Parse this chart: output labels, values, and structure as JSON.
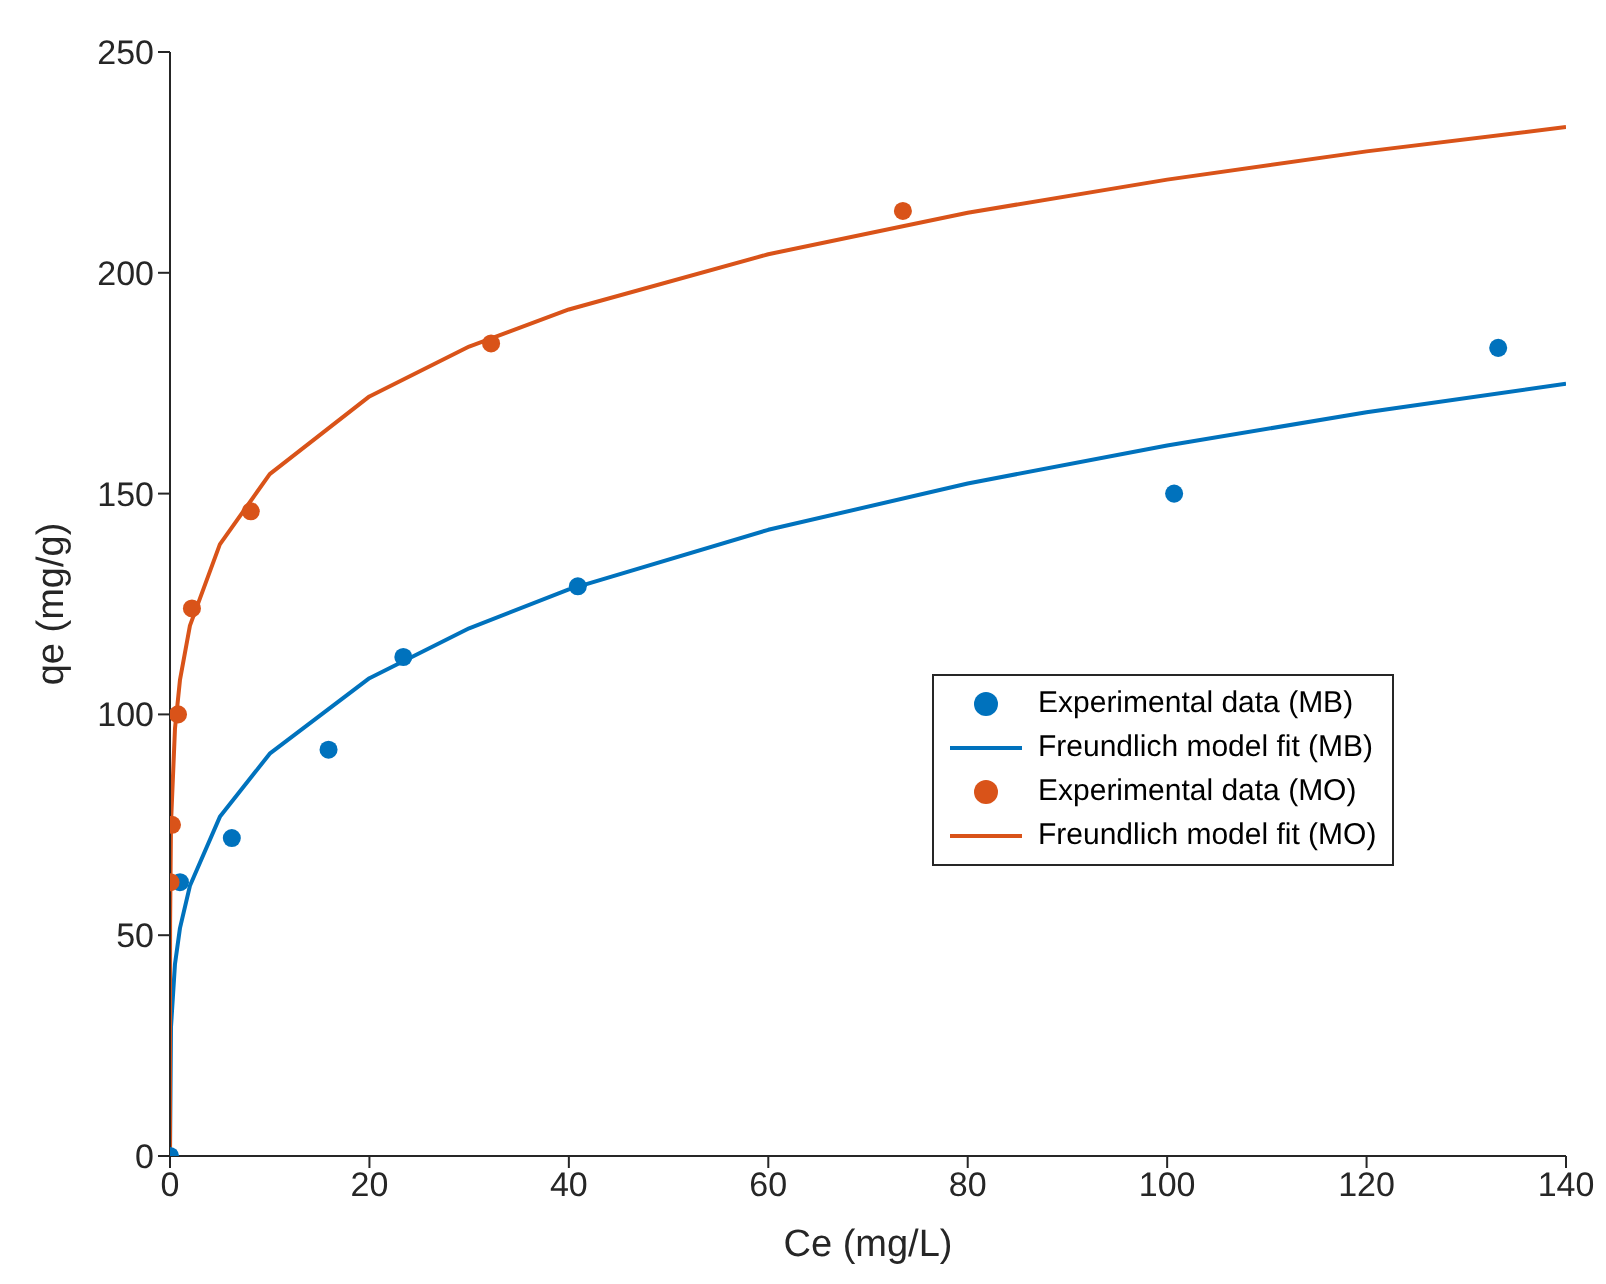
{
  "chart_data": {
    "type": "scatter",
    "xlabel": "Ce (mg/L)",
    "ylabel": "qe (mg/g)",
    "xlim": [
      0,
      140
    ],
    "ylim": [
      0,
      250
    ],
    "xticks": [
      0,
      20,
      40,
      60,
      80,
      100,
      120,
      140
    ],
    "yticks": [
      0,
      50,
      100,
      150,
      200,
      250
    ],
    "grid": false,
    "legend": "right",
    "series": [
      {
        "name": "Experimental data (MB)",
        "marker": "circle",
        "color": "#0072bd",
        "x": [
          0,
          1,
          6.2,
          15.9,
          23.4,
          40.9,
          100.7,
          133.2
        ],
        "values": [
          0,
          62,
          72,
          92,
          113,
          129,
          150,
          183
        ]
      },
      {
        "name": "Freundlich model fit (MB)",
        "type": "line",
        "marker": "none",
        "line_style": "solid",
        "color": "#0072bd",
        "x": [
          0,
          0.1,
          0.5,
          1,
          2,
          5,
          10,
          20,
          30,
          40,
          60,
          80,
          100,
          120,
          140
        ],
        "values": [
          0,
          29.2,
          43.5,
          51.6,
          61.2,
          76.8,
          91.1,
          108.2,
          119.5,
          128.3,
          141.8,
          152.3,
          160.9,
          168.4,
          174.9
        ]
      },
      {
        "name": "Experimental data (MO)",
        "marker": "circle",
        "color": "#d95319",
        "x": [
          0.05,
          0.2,
          0.8,
          2.2,
          8.1,
          32.2,
          73.5
        ],
        "values": [
          62,
          75,
          100,
          124,
          146,
          184,
          214
        ]
      },
      {
        "name": "Freundlich model fit (MO)",
        "type": "line",
        "marker": "none",
        "line_style": "solid",
        "color": "#d95319",
        "x": [
          0,
          0.001,
          0.01,
          0.1,
          0.5,
          1,
          2,
          5,
          10,
          20,
          30,
          40,
          60,
          80,
          100,
          120,
          140
        ],
        "values": [
          0,
          36.7,
          52.6,
          75.3,
          96.8,
          107.8,
          120.1,
          138.5,
          154.4,
          172,
          183.3,
          191.7,
          204.2,
          213.6,
          221.1,
          227.5,
          233
        ]
      }
    ]
  }
}
